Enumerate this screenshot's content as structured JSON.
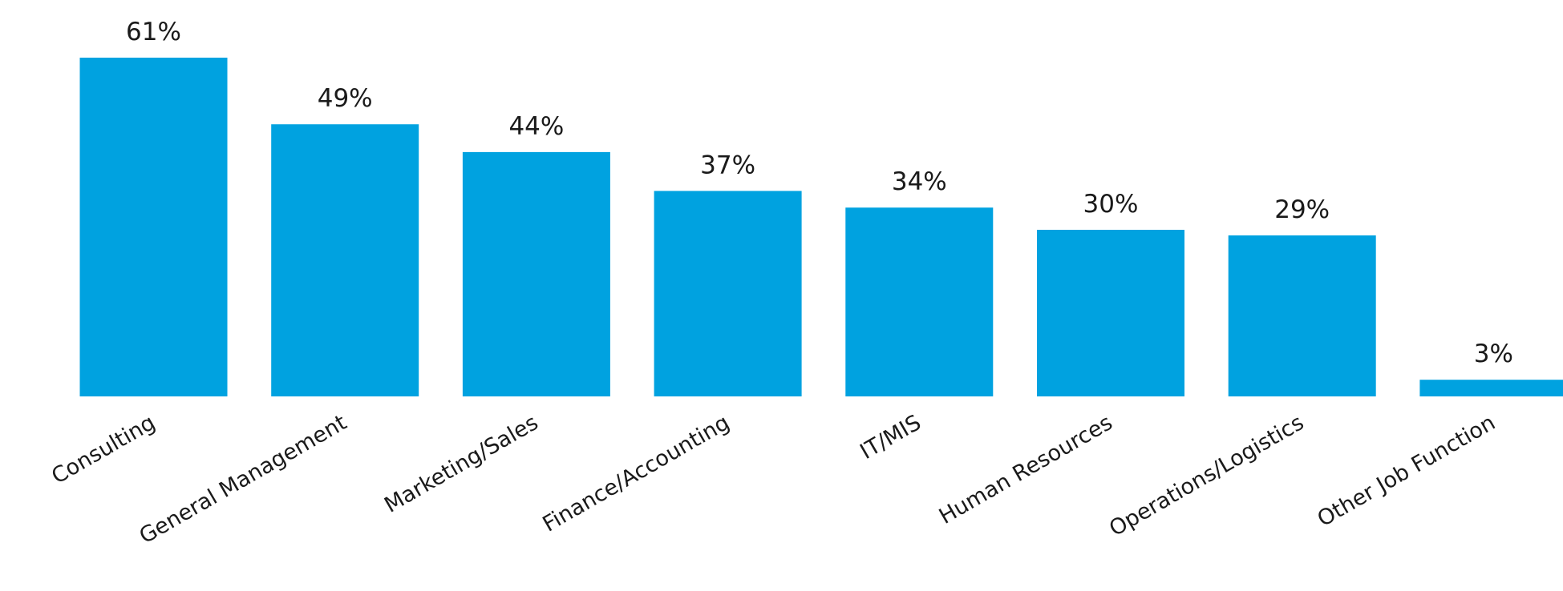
{
  "chart_data": {
    "type": "bar",
    "categories": [
      "Consulting",
      "General Management",
      "Marketing/Sales",
      "Finance/Accounting",
      "IT/MIS",
      "Human Resources",
      "Operations/Logistics",
      "Other Job Function"
    ],
    "values": [
      61,
      49,
      44,
      37,
      34,
      30,
      29,
      3
    ],
    "value_labels": [
      "61%",
      "49%",
      "44%",
      "37%",
      "34%",
      "30%",
      "29%",
      "3%"
    ],
    "color": "#00a2e0"
  }
}
